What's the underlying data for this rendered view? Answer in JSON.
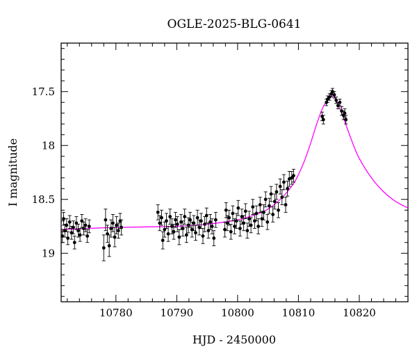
{
  "chart_data": {
    "type": "scatter",
    "title": "OGLE-2025-BLG-0641",
    "xlabel": "HJD - 2450000",
    "ylabel": "I magnitude",
    "xlim": [
      10771,
      10828
    ],
    "ylim": [
      19.45,
      17.05
    ],
    "y_inverted": true,
    "grid": false,
    "colors": {
      "points": "#000000",
      "model": "#ff00ff"
    },
    "x_ticks": [
      {
        "value": 10780,
        "label": "10780"
      },
      {
        "value": 10790,
        "label": "10790"
      },
      {
        "value": 10800,
        "label": "10800"
      },
      {
        "value": 10810,
        "label": "10810"
      },
      {
        "value": 10820,
        "label": "10820"
      }
    ],
    "y_ticks": [
      {
        "value": 17.5,
        "label": "17.5"
      },
      {
        "value": 18,
        "label": "18"
      },
      {
        "value": 18.5,
        "label": "18.5"
      },
      {
        "value": 19,
        "label": "19"
      }
    ],
    "model": {
      "type": "line",
      "x": [
        10771,
        10775,
        10780,
        10785,
        10790,
        10795,
        10800,
        10803,
        10805,
        10807,
        10809,
        10810,
        10811,
        10812,
        10813,
        10814,
        10815,
        10815.5,
        10816,
        10817,
        10818,
        10819,
        10820,
        10822,
        10824,
        10826,
        10828
      ],
      "y": [
        18.78,
        18.77,
        18.76,
        18.755,
        18.75,
        18.73,
        18.69,
        18.64,
        18.59,
        18.5,
        18.37,
        18.27,
        18.14,
        17.98,
        17.8,
        17.65,
        17.56,
        17.54,
        17.56,
        17.68,
        17.84,
        17.99,
        18.12,
        18.3,
        18.43,
        18.52,
        18.58
      ]
    },
    "series": [
      {
        "x": [
          10771.2,
          10771.4,
          10771.6,
          10771.9,
          10772.1,
          10772.4,
          10772.7,
          10773.0,
          10773.2,
          10773.5,
          10773.8,
          10774.1,
          10774.4,
          10774.7,
          10775.0,
          10775.3,
          10775.6,
          10778.0,
          10778.3,
          10778.6,
          10778.9,
          10779.2,
          10779.5,
          10779.8,
          10780.1,
          10780.4,
          10780.7,
          10780.9
        ],
        "y": [
          18.84,
          18.68,
          18.79,
          18.74,
          18.86,
          18.71,
          18.81,
          18.76,
          18.9,
          18.72,
          18.79,
          18.83,
          18.7,
          18.77,
          18.74,
          18.84,
          18.75,
          18.95,
          18.69,
          18.82,
          18.93,
          18.77,
          18.72,
          18.85,
          18.74,
          18.79,
          18.7,
          18.76
        ],
        "yerr": [
          0.06,
          0.06,
          0.06,
          0.06,
          0.06,
          0.06,
          0.06,
          0.06,
          0.06,
          0.06,
          0.06,
          0.06,
          0.06,
          0.06,
          0.06,
          0.06,
          0.06,
          0.12,
          0.1,
          0.08,
          0.1,
          0.08,
          0.08,
          0.09,
          0.08,
          0.07,
          0.07,
          0.07
        ]
      },
      {
        "x": [
          10786.9,
          10787.2,
          10787.5,
          10787.7,
          10788.0,
          10788.3,
          10788.6,
          10788.9,
          10789.2,
          10789.5,
          10789.8,
          10790.1,
          10790.4,
          10790.7,
          10791.0,
          10791.3,
          10791.6,
          10791.9,
          10792.2,
          10792.5,
          10792.8,
          10793.1,
          10793.4,
          10793.7,
          10794.0,
          10794.3,
          10794.6,
          10794.9,
          10795.2,
          10795.5,
          10795.8,
          10796.1,
          10796.4
        ],
        "y": [
          18.62,
          18.72,
          18.67,
          18.88,
          18.78,
          18.7,
          18.82,
          18.66,
          18.75,
          18.8,
          18.69,
          18.73,
          18.85,
          18.71,
          18.77,
          18.66,
          18.83,
          18.74,
          18.69,
          18.78,
          18.72,
          18.81,
          18.67,
          18.76,
          18.7,
          18.84,
          18.73,
          18.65,
          18.79,
          18.71,
          18.75,
          18.86,
          18.69
        ],
        "yerr": [
          0.07,
          0.07,
          0.07,
          0.08,
          0.07,
          0.07,
          0.07,
          0.07,
          0.07,
          0.07,
          0.07,
          0.07,
          0.07,
          0.07,
          0.07,
          0.07,
          0.07,
          0.07,
          0.07,
          0.07,
          0.07,
          0.07,
          0.07,
          0.07,
          0.07,
          0.07,
          0.07,
          0.07,
          0.07,
          0.07,
          0.07,
          0.07,
          0.07
        ]
      },
      {
        "x": [
          10797.9,
          10798.1,
          10798.3,
          10798.6,
          10798.9,
          10799.2,
          10799.5,
          10799.8,
          10800.1,
          10800.4,
          10800.7,
          10801.0,
          10801.3,
          10801.6,
          10801.9,
          10802.2,
          10802.5,
          10802.8,
          10803.1,
          10803.4,
          10803.7,
          10804.0,
          10804.3,
          10804.6,
          10804.9,
          10805.2,
          10805.5,
          10805.8,
          10806.1,
          10806.4,
          10806.7,
          10807.0,
          10807.3,
          10807.6,
          10807.9,
          10808.2,
          10808.5
        ],
        "y": [
          18.78,
          18.6,
          18.72,
          18.67,
          18.8,
          18.63,
          18.75,
          18.7,
          18.58,
          18.77,
          18.66,
          18.72,
          18.61,
          18.79,
          18.68,
          18.74,
          18.57,
          18.7,
          18.63,
          18.75,
          18.55,
          18.68,
          18.62,
          18.5,
          18.71,
          18.56,
          18.45,
          18.64,
          18.52,
          18.43,
          18.6,
          18.38,
          18.48,
          18.34,
          18.55,
          18.4,
          18.31
        ],
        "yerr": [
          0.07,
          0.07,
          0.07,
          0.07,
          0.07,
          0.07,
          0.07,
          0.07,
          0.07,
          0.07,
          0.07,
          0.07,
          0.07,
          0.07,
          0.07,
          0.07,
          0.07,
          0.07,
          0.07,
          0.07,
          0.07,
          0.07,
          0.07,
          0.07,
          0.07,
          0.07,
          0.07,
          0.07,
          0.07,
          0.07,
          0.07,
          0.07,
          0.07,
          0.07,
          0.07,
          0.07,
          0.07
        ]
      },
      {
        "x": [
          10808.9,
          10809.2,
          10813.9,
          10814.1,
          10814.6,
          10814.8,
          10815.1,
          10815.4,
          10815.6,
          10815.9,
          10816.2,
          10816.5,
          10816.8,
          10817.1,
          10817.4,
          10817.6,
          10817.8
        ],
        "y": [
          18.3,
          18.28,
          17.73,
          17.76,
          17.6,
          17.57,
          17.55,
          17.52,
          17.5,
          17.53,
          17.58,
          17.63,
          17.6,
          17.68,
          17.72,
          17.7,
          17.76
        ],
        "yerr": [
          0.06,
          0.06,
          0.04,
          0.04,
          0.03,
          0.03,
          0.03,
          0.03,
          0.03,
          0.03,
          0.03,
          0.03,
          0.03,
          0.04,
          0.04,
          0.04,
          0.04
        ]
      }
    ]
  }
}
